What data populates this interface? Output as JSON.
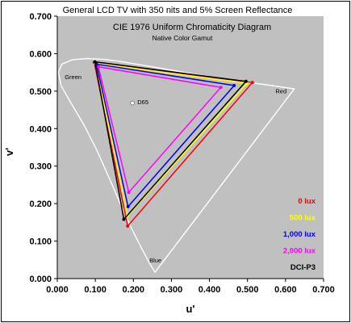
{
  "chart_data": {
    "type": "scatter",
    "title": "General LCD TV  with 350 nits  and  5% Screen Reflectance",
    "inner_title": "CIE 1976 Uniform Chromaticity Diagram",
    "subtitle": "Native Color Gamut",
    "xlabel": "u'",
    "ylabel": "v'",
    "xlim": [
      0,
      0.7
    ],
    "ylim": [
      0,
      0.7
    ],
    "xticks": [
      "0.000",
      "0.100",
      "0.200",
      "0.300",
      "0.400",
      "0.500",
      "0.600",
      "0.700"
    ],
    "yticks": [
      "0.000",
      "0.100",
      "0.200",
      "0.300",
      "0.400",
      "0.500",
      "0.600",
      "0.700"
    ],
    "plot_bg": "#c0c0c0",
    "grid": false,
    "legend_position": "bottom-right",
    "annotations": [
      {
        "label": "Green",
        "u": 0.0195,
        "v": 0.5325
      },
      {
        "label": "Red",
        "u": 0.5735,
        "v": 0.494
      },
      {
        "label": "Blue",
        "u": 0.242,
        "v": 0.043
      },
      {
        "label": "D65",
        "u": 0.2105,
        "v": 0.465
      }
    ],
    "white_point": {
      "u": 0.1978,
      "v": 0.4683
    },
    "spectral_locus": [
      [
        0.257,
        0.017
      ],
      [
        0.243,
        0.04
      ],
      [
        0.222,
        0.08
      ],
      [
        0.197,
        0.13
      ],
      [
        0.17,
        0.19
      ],
      [
        0.14,
        0.26
      ],
      [
        0.105,
        0.34
      ],
      [
        0.07,
        0.41
      ],
      [
        0.035,
        0.47
      ],
      [
        0.01,
        0.515
      ],
      [
        0.003,
        0.55
      ],
      [
        0.012,
        0.572
      ],
      [
        0.04,
        0.584
      ],
      [
        0.08,
        0.587
      ],
      [
        0.12,
        0.585
      ],
      [
        0.16,
        0.58
      ],
      [
        0.25,
        0.565
      ],
      [
        0.35,
        0.547
      ],
      [
        0.45,
        0.53
      ],
      [
        0.55,
        0.517
      ],
      [
        0.623,
        0.506
      ]
    ],
    "series": [
      {
        "name": "0 lux",
        "color": "#ff0000",
        "points": [
          [
            0.513,
            0.523
          ],
          [
            0.097,
            0.577
          ],
          [
            0.185,
            0.14
          ]
        ]
      },
      {
        "name": "500 lux",
        "color": "#ffff00",
        "points": [
          [
            0.498,
            0.52
          ],
          [
            0.1,
            0.575
          ],
          [
            0.185,
            0.168
          ]
        ]
      },
      {
        "name": "1,000 lux",
        "color": "#0000ff",
        "points": [
          [
            0.465,
            0.515
          ],
          [
            0.103,
            0.572
          ],
          [
            0.186,
            0.192
          ]
        ]
      },
      {
        "name": "2,000 lux",
        "color": "#ff00ff",
        "points": [
          [
            0.43,
            0.51
          ],
          [
            0.108,
            0.565
          ],
          [
            0.188,
            0.23
          ]
        ]
      },
      {
        "name": "DCI-P3",
        "color": "#000000",
        "points": [
          [
            0.496,
            0.526
          ],
          [
            0.099,
            0.578
          ],
          [
            0.175,
            0.158
          ]
        ]
      }
    ]
  }
}
